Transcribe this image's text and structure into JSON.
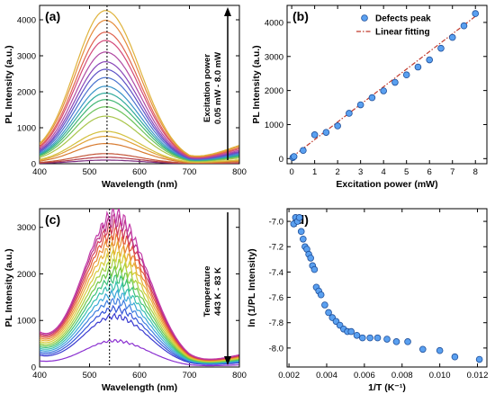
{
  "chart_data": [
    {
      "id": "a",
      "type": "line",
      "panel_label": "(a)",
      "xlabel": "Wavelength (nm)",
      "ylabel": "PL Intensity (a.u.)",
      "xlim": [
        400,
        800
      ],
      "ylim": [
        0,
        4400
      ],
      "xticks": [
        400,
        500,
        600,
        700,
        800
      ],
      "yticks": [
        0,
        1000,
        2000,
        3000,
        4000
      ],
      "vline_x": 535,
      "annotation": [
        "Excitation power",
        "0.05 mW - 8.0 mW"
      ],
      "arrow_direction": "up",
      "curve_shape": {
        "center": 532,
        "sigma_left": 62,
        "sigma_right": 70,
        "floor_frac": 0.03,
        "tail_end": 0.12
      },
      "series": [
        {
          "peak": 100,
          "color": "#7a2d80"
        },
        {
          "peak": 180,
          "color": "#b03a4a"
        },
        {
          "peak": 280,
          "color": "#c4573a"
        },
        {
          "peak": 560,
          "color": "#d77a2f"
        },
        {
          "peak": 760,
          "color": "#e1a135"
        },
        {
          "peak": 900,
          "color": "#d3c13e"
        },
        {
          "peak": 1320,
          "color": "#a9c54a"
        },
        {
          "peak": 1580,
          "color": "#6cc35a"
        },
        {
          "peak": 1780,
          "color": "#3fb673"
        },
        {
          "peak": 1960,
          "color": "#2fab9c"
        },
        {
          "peak": 2150,
          "color": "#3b94c8"
        },
        {
          "peak": 2390,
          "color": "#4a72cf"
        },
        {
          "peak": 2620,
          "color": "#5e52c6"
        },
        {
          "peak": 2830,
          "color": "#8846b8"
        },
        {
          "peak": 3100,
          "color": "#b04aa3"
        },
        {
          "peak": 3420,
          "color": "#d34a7a"
        },
        {
          "peak": 3650,
          "color": "#e0634f"
        },
        {
          "peak": 3980,
          "color": "#e58c3a"
        },
        {
          "peak": 4250,
          "color": "#dfb33c"
        }
      ]
    },
    {
      "id": "b",
      "type": "scatter",
      "panel_label": "(b)",
      "xlabel": "Excitation power (mW)",
      "ylabel": "PL Intensity (a.u.)",
      "xlim": [
        -0.2,
        8.5
      ],
      "ylim": [
        -150,
        4500
      ],
      "xticks": [
        0,
        1,
        2,
        3,
        4,
        5,
        6,
        7,
        8
      ],
      "yticks": [
        0,
        1000,
        2000,
        3000,
        4000
      ],
      "legend": {
        "points": "Defects peak",
        "fit": "Linear fitting",
        "position": "top-right"
      },
      "points": [
        {
          "x": 0.05,
          "y": 30
        },
        {
          "x": 0.1,
          "y": 60
        },
        {
          "x": 0.5,
          "y": 240
        },
        {
          "x": 1.0,
          "y": 700
        },
        {
          "x": 1.5,
          "y": 770
        },
        {
          "x": 2.0,
          "y": 960
        },
        {
          "x": 2.5,
          "y": 1330
        },
        {
          "x": 3.0,
          "y": 1580
        },
        {
          "x": 3.5,
          "y": 1790
        },
        {
          "x": 4.0,
          "y": 1990
        },
        {
          "x": 4.5,
          "y": 2240
        },
        {
          "x": 5.0,
          "y": 2460
        },
        {
          "x": 5.5,
          "y": 2690
        },
        {
          "x": 6.0,
          "y": 2900
        },
        {
          "x": 6.5,
          "y": 3240
        },
        {
          "x": 7.0,
          "y": 3560
        },
        {
          "x": 7.5,
          "y": 3900
        },
        {
          "x": 8.0,
          "y": 4260
        }
      ],
      "fit": {
        "x": [
          0,
          8
        ],
        "y": [
          40,
          4180
        ]
      },
      "point_color": "#5aa0f0",
      "fit_color": "#c0392b"
    },
    {
      "id": "c",
      "type": "line",
      "panel_label": "(c)",
      "xlabel": "Wavelength (nm)",
      "ylabel": "PL Intensity (a.u.)",
      "xlim": [
        400,
        800
      ],
      "ylim": [
        0,
        3400
      ],
      "xticks": [
        400,
        500,
        600,
        700,
        800
      ],
      "yticks": [
        0,
        1000,
        2000,
        3000
      ],
      "vline_x": 540,
      "annotation": [
        "Temperature",
        "443 K - 83 K"
      ],
      "arrow_direction": "down",
      "curve_shape": {
        "center": 550,
        "sigma_left": 62,
        "sigma_right": 68,
        "floor_frac": 0.18,
        "tail_end": 0.08
      },
      "series": [
        {
          "peak": 560,
          "color": "#8a2fd0"
        },
        {
          "peak": 1080,
          "color": "#3a3ad0"
        },
        {
          "peak": 1240,
          "color": "#3555d8"
        },
        {
          "peak": 1400,
          "color": "#3f7fe0"
        },
        {
          "peak": 1560,
          "color": "#3aa8d8"
        },
        {
          "peak": 1720,
          "color": "#38c0b0"
        },
        {
          "peak": 1880,
          "color": "#3ec27a"
        },
        {
          "peak": 2040,
          "color": "#6cc84a"
        },
        {
          "peak": 2200,
          "color": "#a6d03e"
        },
        {
          "peak": 2370,
          "color": "#d6cc3a"
        },
        {
          "peak": 2540,
          "color": "#e8b236"
        },
        {
          "peak": 2700,
          "color": "#e98a34"
        },
        {
          "peak": 2860,
          "color": "#e2583a"
        },
        {
          "peak": 3000,
          "color": "#d23c5c"
        },
        {
          "peak": 3130,
          "color": "#b82f86"
        },
        {
          "peak": 3250,
          "color": "#c23aa8"
        }
      ]
    },
    {
      "id": "d",
      "type": "scatter",
      "panel_label": "(d)",
      "xlabel": "1/T (K⁻¹)",
      "ylabel": "ln (1/PL Intensity)",
      "xlim": [
        0.0019,
        0.0125
      ],
      "ylim": [
        -8.15,
        -6.9
      ],
      "xticks": [
        0.002,
        0.004,
        0.006,
        0.008,
        0.01,
        0.012
      ],
      "xtick_labels": [
        "0.002",
        "0.004",
        "0.006",
        "0.008",
        "0.010",
        "0.012"
      ],
      "yticks": [
        -7.0,
        -7.2,
        -7.4,
        -7.6,
        -7.8,
        -8.0
      ],
      "ytick_labels": [
        "-7.0",
        "-7.2",
        "-7.4",
        "-7.6",
        "-7.8",
        "-8.0"
      ],
      "point_color": "#5aa0f0",
      "points": [
        {
          "x": 0.00225,
          "y": -7.02
        },
        {
          "x": 0.00235,
          "y": -6.97
        },
        {
          "x": 0.00245,
          "y": -7.0
        },
        {
          "x": 0.00255,
          "y": -6.97
        },
        {
          "x": 0.00265,
          "y": -7.08
        },
        {
          "x": 0.00275,
          "y": -7.14
        },
        {
          "x": 0.00285,
          "y": -7.2
        },
        {
          "x": 0.00295,
          "y": -7.22
        },
        {
          "x": 0.00305,
          "y": -7.26
        },
        {
          "x": 0.00315,
          "y": -7.29
        },
        {
          "x": 0.00325,
          "y": -7.35
        },
        {
          "x": 0.00335,
          "y": -7.38
        },
        {
          "x": 0.00345,
          "y": -7.52
        },
        {
          "x": 0.00358,
          "y": -7.55
        },
        {
          "x": 0.0037,
          "y": -7.58
        },
        {
          "x": 0.0039,
          "y": -7.66
        },
        {
          "x": 0.0041,
          "y": -7.72
        },
        {
          "x": 0.0043,
          "y": -7.76
        },
        {
          "x": 0.0045,
          "y": -7.79
        },
        {
          "x": 0.0047,
          "y": -7.82
        },
        {
          "x": 0.0049,
          "y": -7.85
        },
        {
          "x": 0.0051,
          "y": -7.87
        },
        {
          "x": 0.0053,
          "y": -7.87
        },
        {
          "x": 0.0056,
          "y": -7.9
        },
        {
          "x": 0.0059,
          "y": -7.92
        },
        {
          "x": 0.0063,
          "y": -7.92
        },
        {
          "x": 0.0067,
          "y": -7.92
        },
        {
          "x": 0.0072,
          "y": -7.93
        },
        {
          "x": 0.0077,
          "y": -7.95
        },
        {
          "x": 0.0083,
          "y": -7.95
        },
        {
          "x": 0.0091,
          "y": -8.01
        },
        {
          "x": 0.01,
          "y": -8.02
        },
        {
          "x": 0.0108,
          "y": -8.07
        },
        {
          "x": 0.0121,
          "y": -8.09
        }
      ]
    }
  ]
}
